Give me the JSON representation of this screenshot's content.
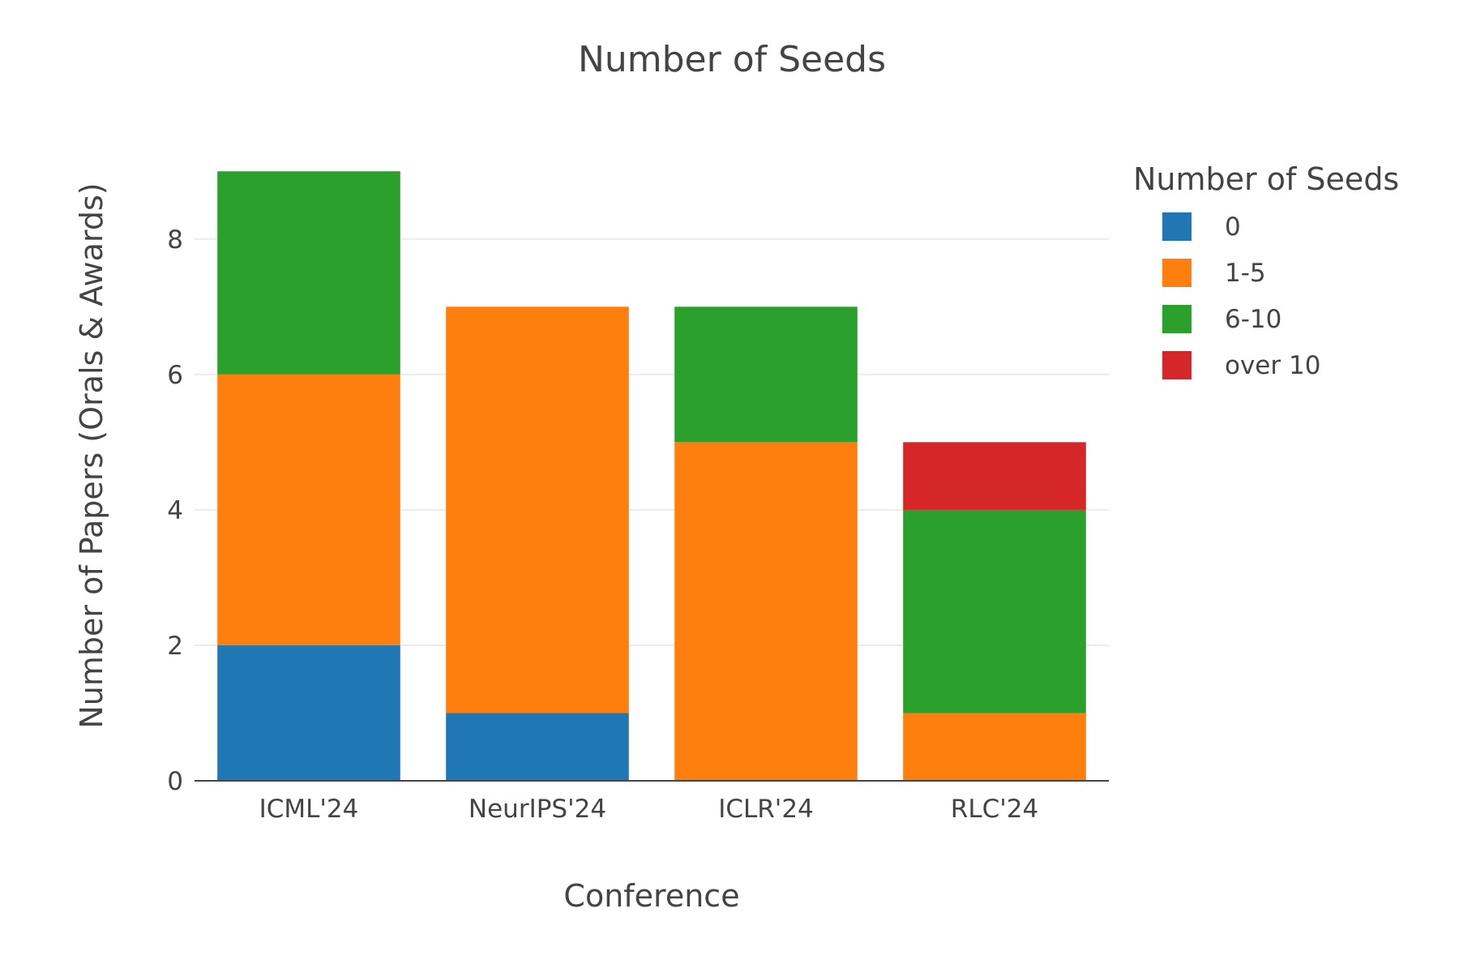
{
  "chart_data": {
    "type": "bar",
    "barmode": "stack",
    "title": "Number of Seeds",
    "xlabel": "Conference",
    "ylabel": "Number of Papers (Orals & Awards)",
    "categories": [
      "ICML'24",
      "NeurIPS'24",
      "ICLR'24",
      "RLC'24"
    ],
    "yticks": [
      0,
      2,
      4,
      6,
      8
    ],
    "ylim": [
      0,
      9.47
    ],
    "grid": "horizontal",
    "legend": {
      "title": "Number of Seeds",
      "placement": "top-right"
    },
    "series": [
      {
        "name": "0",
        "color": "#1f77b4",
        "values": [
          2,
          1,
          0,
          0
        ]
      },
      {
        "name": "1-5",
        "color": "#ff7f0e",
        "values": [
          4,
          6,
          5,
          1
        ]
      },
      {
        "name": "6-10",
        "color": "#2ca02c",
        "values": [
          3,
          0,
          2,
          3
        ]
      },
      {
        "name": "over 10",
        "color": "#d62728",
        "values": [
          0,
          0,
          0,
          1
        ]
      }
    ]
  }
}
